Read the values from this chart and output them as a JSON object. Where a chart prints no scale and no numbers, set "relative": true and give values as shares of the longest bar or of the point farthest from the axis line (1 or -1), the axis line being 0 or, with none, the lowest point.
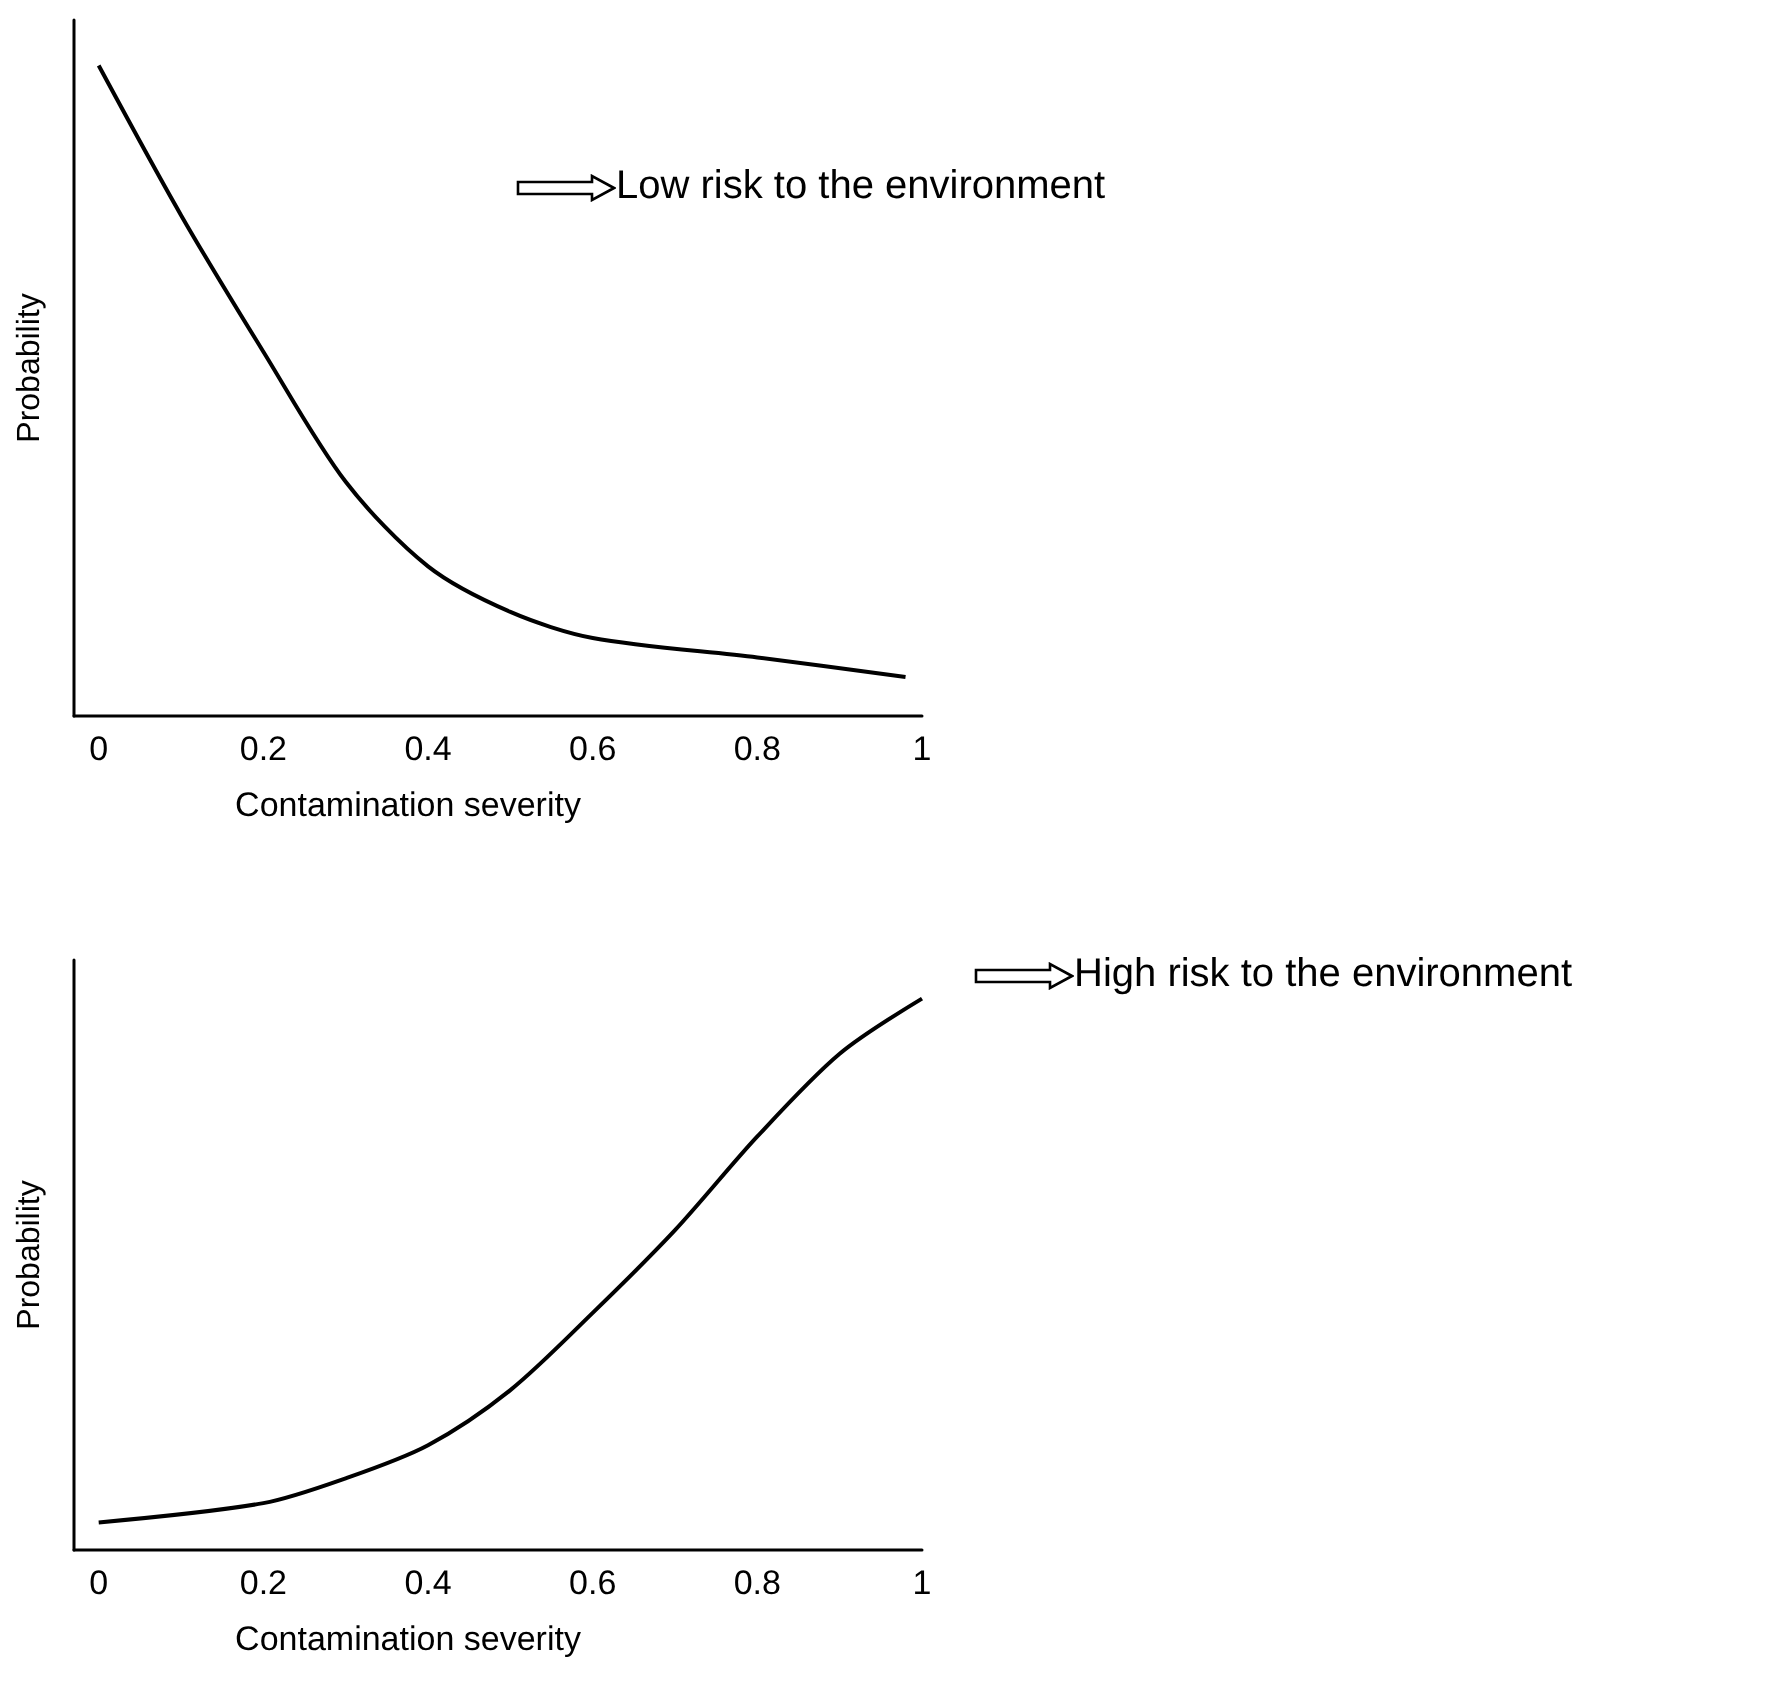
{
  "chart_data": [
    {
      "type": "line",
      "relative": true,
      "xlabel": "Contamination severity",
      "ylabel": "Probability",
      "annotations": [
        "Low risk to the environment"
      ],
      "xlim": [
        -0.03,
        1
      ],
      "xticks": [
        0,
        0.2,
        0.4,
        0.6,
        0.8,
        1
      ],
      "grid": false,
      "marker": "none",
      "line_style": "solid",
      "series": [
        {
          "color": "#000000",
          "x": [
            0,
            0.1,
            0.2,
            0.3,
            0.4,
            0.5,
            0.6,
            0.8,
            0.98
          ],
          "values": [
            1.0,
            0.77,
            0.56,
            0.36,
            0.23,
            0.16,
            0.12,
            0.09,
            0.06
          ]
        }
      ]
    },
    {
      "type": "line",
      "relative": true,
      "xlabel": "Contamination severity",
      "ylabel": "Probability",
      "annotations": [
        "High risk to the environment"
      ],
      "xlim": [
        -0.03,
        1
      ],
      "xticks": [
        0,
        0.2,
        0.4,
        0.6,
        0.8,
        1
      ],
      "grid": false,
      "marker": "none",
      "line_style": "solid",
      "series": [
        {
          "color": "#000000",
          "x": [
            0,
            0.2,
            0.3,
            0.4,
            0.5,
            0.6,
            0.7,
            0.8,
            0.9,
            1.0
          ],
          "values": [
            0.05,
            0.085,
            0.13,
            0.19,
            0.29,
            0.43,
            0.58,
            0.75,
            0.9,
            1.0
          ]
        }
      ]
    }
  ]
}
